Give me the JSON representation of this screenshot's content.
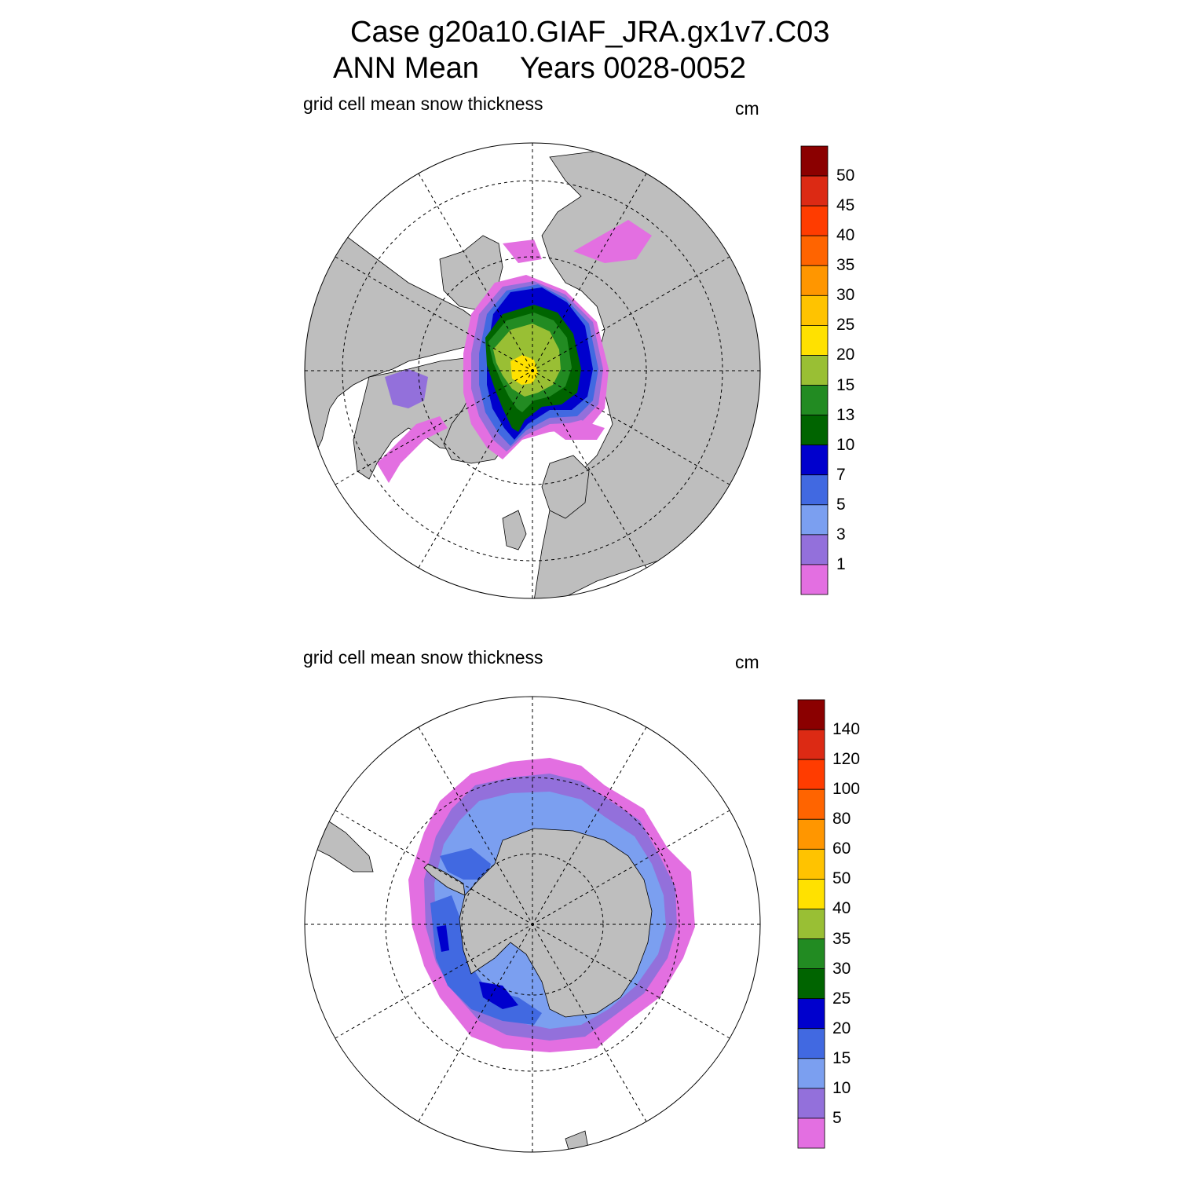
{
  "title": {
    "line1": "Case g20a10.GIAF_JRA.gx1v7.C03",
    "line2": "ANN Mean     Years 0028-0052"
  },
  "panels": [
    {
      "id": "north",
      "hemisphere": "Northern",
      "subtitle": "grid cell mean snow thickness",
      "units": "cm",
      "colorbar_labels": [
        "50",
        "45",
        "40",
        "35",
        "30",
        "25",
        "20",
        "15",
        "13",
        "10",
        "7",
        "5",
        "3",
        "1"
      ],
      "colorbar_colors": [
        "#8b0000",
        "#dc2a14",
        "#ff3c00",
        "#ff6400",
        "#ff9600",
        "#ffc300",
        "#ffe100",
        "#99bf34",
        "#228b22",
        "#006400",
        "#0000cd",
        "#4169e1",
        "#7b9ff0",
        "#9370db",
        "#e36fe1"
      ]
    },
    {
      "id": "south",
      "hemisphere": "Southern",
      "subtitle": "grid cell mean snow thickness",
      "units": "cm",
      "colorbar_labels": [
        "140",
        "120",
        "100",
        "80",
        "60",
        "50",
        "40",
        "35",
        "30",
        "25",
        "20",
        "15",
        "10",
        "5"
      ],
      "colorbar_colors": [
        "#8b0000",
        "#dc2a14",
        "#ff3c00",
        "#ff6400",
        "#ff9600",
        "#ffc300",
        "#ffe100",
        "#99bf34",
        "#228b22",
        "#006400",
        "#0000cd",
        "#4169e1",
        "#7b9ff0",
        "#9370db",
        "#e36fe1"
      ]
    }
  ],
  "colors": {
    "land": "#bebebe",
    "ocean": "#ffffff"
  }
}
